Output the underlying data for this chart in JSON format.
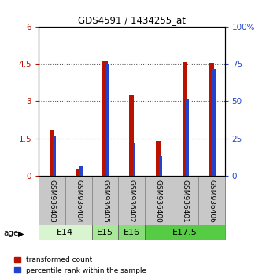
{
  "title": "GDS4591 / 1434255_at",
  "samples": [
    "GSM936403",
    "GSM936404",
    "GSM936405",
    "GSM936402",
    "GSM936400",
    "GSM936401",
    "GSM936406"
  ],
  "transformed_count": [
    1.85,
    0.27,
    4.62,
    3.25,
    1.38,
    4.55,
    4.52
  ],
  "percentile_rank": [
    27,
    7,
    75,
    22,
    13,
    52,
    72
  ],
  "age_groups": [
    {
      "label": "E14",
      "start": 0,
      "end": 2,
      "color": "#d8f5d0"
    },
    {
      "label": "E15",
      "start": 2,
      "end": 3,
      "color": "#a8e898"
    },
    {
      "label": "E16",
      "start": 3,
      "end": 4,
      "color": "#88dd78"
    },
    {
      "label": "E17.5",
      "start": 4,
      "end": 7,
      "color": "#55cc44"
    }
  ],
  "left_ylim": [
    0,
    6
  ],
  "left_yticks": [
    0,
    1.5,
    3,
    4.5,
    6
  ],
  "left_yticklabels": [
    "0",
    "1.5",
    "3",
    "4.5",
    "6"
  ],
  "right_ylim": [
    0,
    100
  ],
  "right_yticks": [
    0,
    25,
    50,
    75,
    100
  ],
  "right_yticklabels": [
    "0",
    "25",
    "50",
    "75",
    "100%"
  ],
  "bar_color_red": "#bb1100",
  "bar_color_blue": "#2244cc",
  "grid_color": "#888888",
  "sample_area_color": "#c8c8c8"
}
